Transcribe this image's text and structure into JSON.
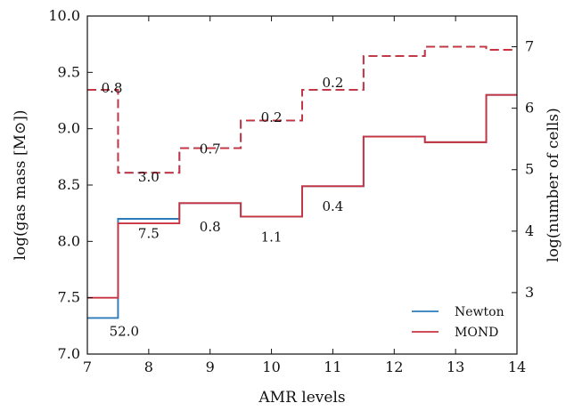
{
  "chart_data": {
    "type": "line",
    "xlabel": "AMR levels",
    "ylabel": "log(gas mass [M⊙])",
    "y2label": "log(number of cells)",
    "xlim": [
      7,
      14
    ],
    "ylim": [
      7.0,
      10.0
    ],
    "y2lim": [
      2.0,
      7.5
    ],
    "x_ticks": [
      "7",
      "8",
      "9",
      "10",
      "11",
      "12",
      "13",
      "14"
    ],
    "y_ticks": [
      "7.0",
      "7.5",
      "8.0",
      "8.5",
      "9.0",
      "9.5",
      "10.0"
    ],
    "y2_ticks": [
      "3",
      "4",
      "5",
      "6",
      "7"
    ],
    "grid": false,
    "legend_position": "lower-right",
    "step": "mid",
    "series": [
      {
        "name": "Newton",
        "axis": "left",
        "color": "#2b7bba",
        "style": "solid",
        "x": [
          7,
          8,
          9,
          10,
          11,
          12,
          13,
          14
        ],
        "y": [
          7.32,
          8.2,
          8.34,
          8.22,
          8.49,
          8.93,
          8.88,
          9.3
        ]
      },
      {
        "name": "MOND",
        "axis": "left",
        "color": "#c8333f",
        "style": "solid",
        "x": [
          7,
          8,
          9,
          10,
          11,
          12,
          13,
          14
        ],
        "y": [
          7.5,
          8.16,
          8.34,
          8.22,
          8.49,
          8.93,
          8.88,
          9.3
        ]
      },
      {
        "axis": "right",
        "color": "#2b7bba",
        "style": "dashed",
        "x": [
          7,
          8,
          9,
          10,
          11,
          12,
          13,
          14
        ],
        "y": [
          6.3,
          4.95,
          5.35,
          5.8,
          6.3,
          6.85,
          7.0,
          6.95
        ]
      },
      {
        "axis": "right",
        "color": "#c8333f",
        "style": "dashed",
        "x": [
          7,
          8,
          9,
          10,
          11,
          12,
          13,
          14
        ],
        "y": [
          6.3,
          4.95,
          5.35,
          5.8,
          6.3,
          6.85,
          7.0,
          6.95
        ]
      }
    ],
    "annotations": [
      {
        "text": "52.0",
        "x": 7.6,
        "y": 7.16
      },
      {
        "text": "7.5",
        "x": 8.0,
        "y": 8.03
      },
      {
        "text": "0.8",
        "x": 9.0,
        "y": 8.09
      },
      {
        "text": "1.1",
        "x": 10.0,
        "y": 8.0
      },
      {
        "text": "0.4",
        "x": 11.0,
        "y": 8.27
      },
      {
        "text": "0.8",
        "x": 7.4,
        "y": 9.32
      },
      {
        "text": "3.0",
        "x": 8.0,
        "y": 8.53
      },
      {
        "text": "0.7",
        "x": 9.0,
        "y": 8.78
      },
      {
        "text": "0.2",
        "x": 10.0,
        "y": 9.06
      },
      {
        "text": "0.2",
        "x": 11.0,
        "y": 9.37
      }
    ]
  }
}
